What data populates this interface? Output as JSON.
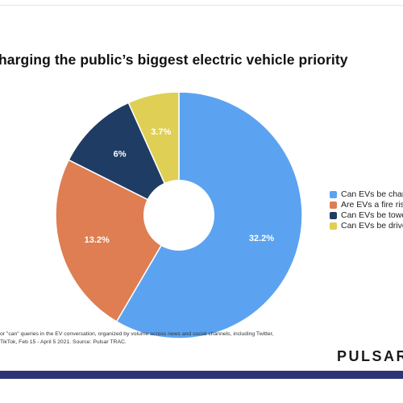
{
  "title": "harging the public’s biggest electric vehicle priority",
  "chart_data": {
    "type": "pie",
    "donut": true,
    "slices": [
      {
        "label": "Can EVs be char",
        "value": 32.2,
        "label_text": "32.2%",
        "color": "#5ba3f0"
      },
      {
        "label": "Are EVs a fire ris",
        "value": 13.2,
        "label_text": "13.2%",
        "color": "#de7e52"
      },
      {
        "label": "Can EVs be towe",
        "value": 6.0,
        "label_text": "6%",
        "color": "#1f3c64"
      },
      {
        "label": "Can EVs be drive",
        "value": 3.7,
        "label_text": "3.7%",
        "color": "#dfcf55"
      }
    ],
    "legend_position": "right"
  },
  "footnote": {
    "line1": "or \"can\" queries in the EV conversation, organized by volume across news and social channels, including Twitter,",
    "line2": "TikTok, Feb 15 - April 5 2021. Source: Pulsar TRAC."
  },
  "logo_text": "PULSAR"
}
